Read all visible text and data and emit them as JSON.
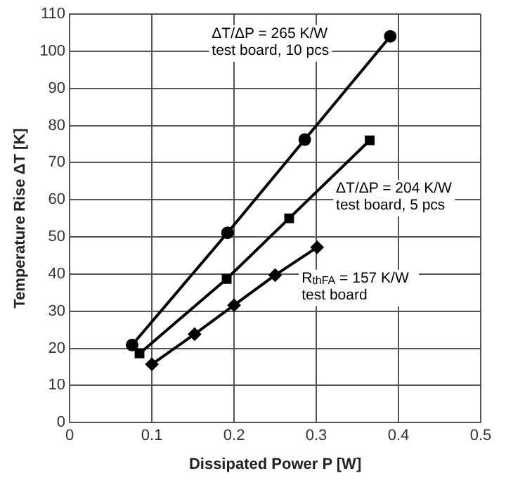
{
  "chart_data": {
    "type": "line",
    "xlabel": "Dissipated Power P [W]",
    "ylabel": "Temperature Rise ΔT [K]",
    "xlim": [
      0,
      0.5
    ],
    "xticks": [
      0,
      0.1,
      0.2,
      0.3,
      0.4,
      0.5
    ],
    "ylim": [
      0,
      110
    ],
    "yticks": [
      0,
      10,
      20,
      30,
      40,
      50,
      60,
      70,
      80,
      90,
      100,
      110
    ],
    "grid": true,
    "legend": false,
    "line_style": "solid",
    "series": [
      {
        "name": "ΔT/ΔP = 265 K/W\ntest board, 10 pcs",
        "color": "#000000",
        "marker": "circle",
        "x": [
          0.076,
          0.192,
          0.286,
          0.39
        ],
        "values": [
          20.9,
          51.1,
          76.2,
          104
        ]
      },
      {
        "name": "ΔT/ΔP = 204 K/W\ntest board, 5 pcs",
        "color": "#000000",
        "marker": "square",
        "x": [
          0.085,
          0.191,
          0.267,
          0.365
        ],
        "values": [
          18.6,
          38.7,
          55,
          76
        ]
      },
      {
        "name": "R$_{thFA}$ = 157 K/W\ntest board",
        "color": "#000000",
        "marker": "diamond",
        "x": [
          0.1,
          0.152,
          0.2,
          0.25,
          0.301
        ],
        "values": [
          15.7,
          23.8,
          31.6,
          39.7,
          47.2
        ]
      }
    ]
  }
}
